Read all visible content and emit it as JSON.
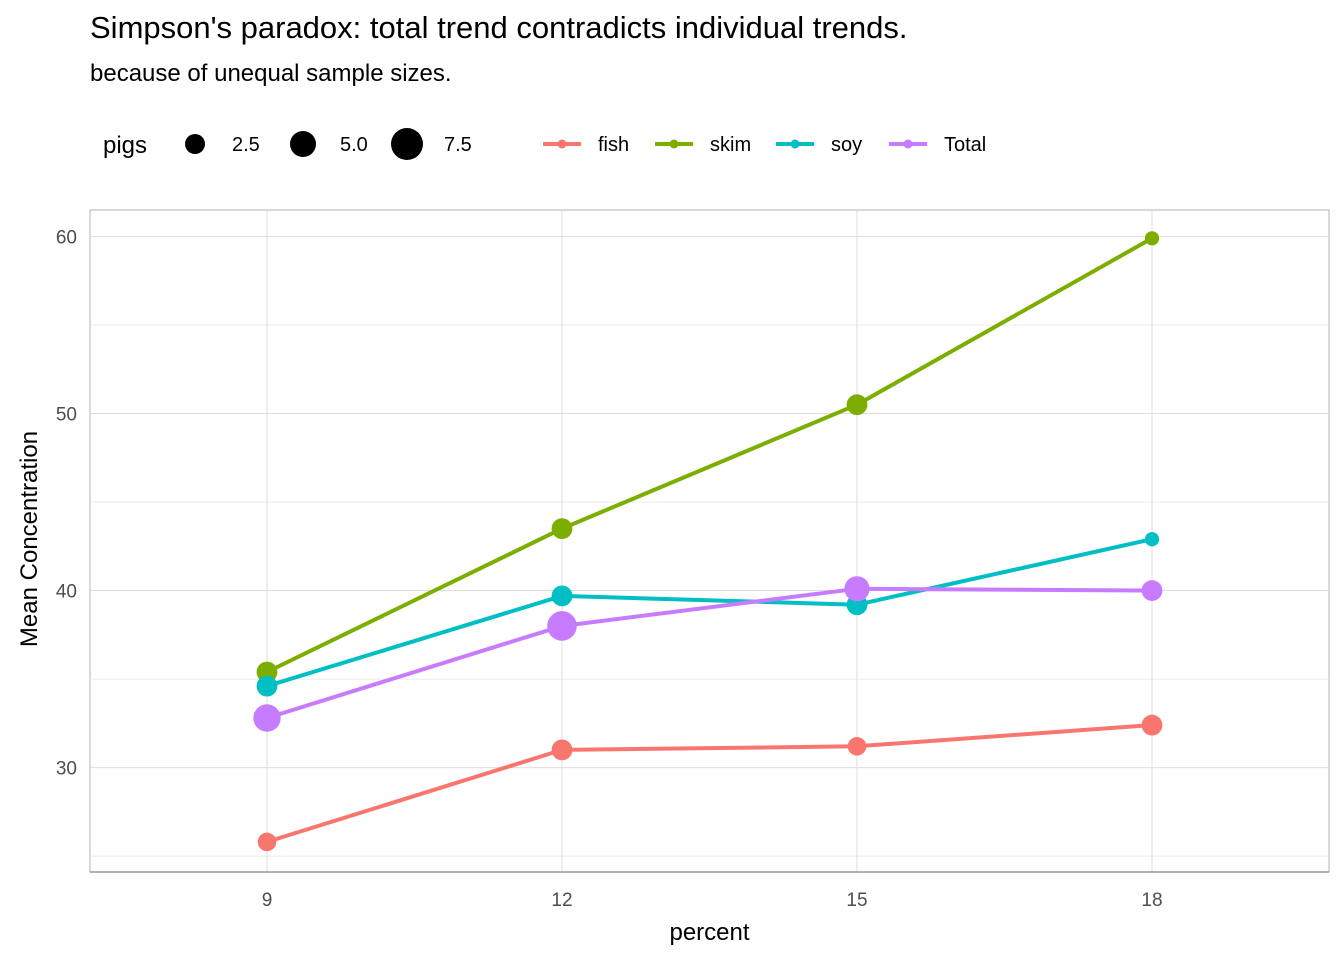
{
  "chart_data": {
    "type": "line",
    "title": "Simpson's paradox: total trend contradicts individual trends.",
    "subtitle": "because of unequal sample sizes.",
    "xlabel": "percent",
    "ylabel": "Mean Concentration",
    "x": [
      9,
      12,
      15,
      18
    ],
    "x_ticks": [
      "9",
      "12",
      "15",
      "18"
    ],
    "y_ticks": [
      "30",
      "40",
      "50",
      "60"
    ],
    "xlim": [
      7.2,
      19.8
    ],
    "ylim": [
      24.1,
      61.5
    ],
    "grid": true,
    "legend_position": "top",
    "size_legend": {
      "title": "pigs",
      "entries": [
        {
          "label": "2.5",
          "value": 2.5
        },
        {
          "label": "5.0",
          "value": 5.0
        },
        {
          "label": "7.5",
          "value": 7.5
        }
      ]
    },
    "series": [
      {
        "name": "fish",
        "color": "#F8766D",
        "values": [
          25.8,
          31.0,
          31.2,
          32.4
        ],
        "pigs": [
          3,
          4,
          3,
          4
        ]
      },
      {
        "name": "skim",
        "color": "#7CAE00",
        "values": [
          35.4,
          43.5,
          50.5,
          59.9
        ],
        "pigs": [
          4,
          4,
          4,
          1
        ]
      },
      {
        "name": "soy",
        "color": "#00BFC4",
        "values": [
          34.6,
          39.7,
          39.2,
          42.9
        ],
        "pigs": [
          4,
          4,
          4,
          1
        ]
      },
      {
        "name": "Total",
        "color": "#C77CFF",
        "values": [
          32.8,
          38.0,
          40.1,
          40.0
        ],
        "pigs": [
          7,
          8,
          6,
          4
        ]
      }
    ]
  }
}
